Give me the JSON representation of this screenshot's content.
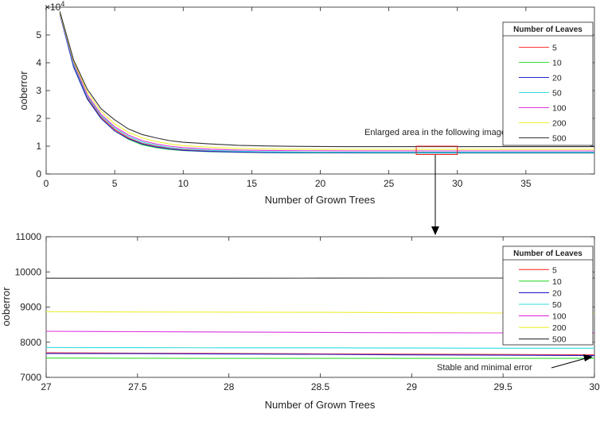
{
  "colors": {
    "5": "#ff3333",
    "10": "#33dd33",
    "20": "#2222cc",
    "50": "#33dddd",
    "100": "#dd33dd",
    "200": "#eeee33",
    "500": "#333333",
    "callout_box": "#dd2222"
  },
  "annotations": {
    "enlarged": "Enlarged area in the following image",
    "stable": "Stable and minimal error"
  },
  "chart_data": [
    {
      "type": "line",
      "xlabel": "Number of Grown Trees",
      "ylabel": "ooberror",
      "y_exponent_label": "×10",
      "y_exponent_power": "4",
      "xlim": [
        0,
        40
      ],
      "ylim": [
        0,
        6
      ],
      "xticks": [
        0,
        5,
        10,
        15,
        20,
        25,
        30,
        35
      ],
      "yticks": [
        0,
        1,
        2,
        3,
        4,
        5
      ],
      "legend_title": "Number of Leaves",
      "legend_position": "top-right",
      "grid": false,
      "x": [
        1,
        2,
        3,
        4,
        5,
        6,
        7,
        8,
        9,
        10,
        12,
        14,
        16,
        18,
        20,
        22,
        24,
        26,
        28,
        30,
        32,
        34,
        36,
        38,
        40
      ],
      "series": [
        {
          "name": "5",
          "values": [
            5.8,
            3.9,
            2.75,
            2.05,
            1.6,
            1.3,
            1.1,
            1.0,
            0.93,
            0.88,
            0.83,
            0.8,
            0.79,
            0.78,
            0.775,
            0.772,
            0.771,
            0.77,
            0.769,
            0.768,
            0.768,
            0.768,
            0.768,
            0.768,
            0.768
          ]
        },
        {
          "name": "10",
          "values": [
            5.8,
            3.85,
            2.7,
            2.0,
            1.55,
            1.25,
            1.05,
            0.95,
            0.88,
            0.84,
            0.8,
            0.78,
            0.765,
            0.76,
            0.757,
            0.756,
            0.755,
            0.755,
            0.755,
            0.755,
            0.755,
            0.755,
            0.755,
            0.755,
            0.755
          ]
        },
        {
          "name": "20",
          "values": [
            5.75,
            3.85,
            2.7,
            2.0,
            1.55,
            1.27,
            1.08,
            0.97,
            0.9,
            0.85,
            0.81,
            0.785,
            0.775,
            0.77,
            0.768,
            0.767,
            0.766,
            0.766,
            0.765,
            0.765,
            0.765,
            0.765,
            0.765,
            0.765,
            0.765
          ]
        },
        {
          "name": "50",
          "values": [
            5.8,
            3.95,
            2.8,
            2.1,
            1.65,
            1.35,
            1.15,
            1.03,
            0.95,
            0.9,
            0.85,
            0.82,
            0.8,
            0.79,
            0.787,
            0.785,
            0.784,
            0.784,
            0.783,
            0.783,
            0.783,
            0.783,
            0.783,
            0.783,
            0.783
          ]
        },
        {
          "name": "100",
          "values": [
            5.8,
            4.0,
            2.85,
            2.15,
            1.7,
            1.4,
            1.2,
            1.08,
            1.0,
            0.95,
            0.89,
            0.86,
            0.845,
            0.837,
            0.833,
            0.831,
            0.83,
            0.83,
            0.829,
            0.828,
            0.828,
            0.828,
            0.828,
            0.828,
            0.828
          ]
        },
        {
          "name": "200",
          "values": [
            5.8,
            4.05,
            2.95,
            2.25,
            1.8,
            1.5,
            1.3,
            1.17,
            1.08,
            1.02,
            0.96,
            0.92,
            0.9,
            0.892,
            0.888,
            0.886,
            0.885,
            0.885,
            0.884,
            0.883,
            0.883,
            0.883,
            0.883,
            0.883,
            0.883
          ]
        },
        {
          "name": "500",
          "values": [
            5.85,
            4.1,
            3.05,
            2.35,
            1.95,
            1.62,
            1.42,
            1.3,
            1.2,
            1.14,
            1.08,
            1.03,
            1.01,
            0.995,
            0.988,
            0.984,
            0.983,
            0.982,
            0.982,
            0.982,
            0.982,
            0.982,
            0.982,
            0.982,
            0.982
          ]
        }
      ],
      "highlight_box": {
        "x": [
          27,
          30
        ],
        "y": [
          0.7,
          1.0
        ]
      }
    },
    {
      "type": "line",
      "xlabel": "Number of Grown Trees",
      "ylabel": "ooberror",
      "xlim": [
        27,
        30
      ],
      "ylim": [
        7000,
        11000
      ],
      "xticks": [
        27,
        27.5,
        28,
        28.5,
        29,
        29.5,
        30
      ],
      "yticks": [
        7000,
        8000,
        9000,
        10000,
        11000
      ],
      "legend_title": "Number of Leaves",
      "legend_position": "top-right",
      "grid": false,
      "x": [
        27,
        27.5,
        28,
        28.5,
        29,
        29.5,
        30
      ],
      "series": [
        {
          "name": "5",
          "values": [
            7700,
            7690,
            7680,
            7670,
            7660,
            7650,
            7640
          ]
        },
        {
          "name": "10",
          "values": [
            7550,
            7545,
            7540,
            7540,
            7540,
            7540,
            7540
          ]
        },
        {
          "name": "20",
          "values": [
            7680,
            7675,
            7665,
            7655,
            7640,
            7630,
            7620
          ]
        },
        {
          "name": "50",
          "values": [
            7850,
            7845,
            7840,
            7840,
            7835,
            7830,
            7830
          ]
        },
        {
          "name": "100",
          "values": [
            8310,
            8300,
            8290,
            8280,
            8270,
            8265,
            8260
          ]
        },
        {
          "name": "200",
          "values": [
            8870,
            8860,
            8855,
            8850,
            8840,
            8830,
            8820
          ]
        },
        {
          "name": "500",
          "values": [
            9820,
            9820,
            9820,
            9822,
            9825,
            9825,
            9825
          ]
        }
      ]
    }
  ]
}
